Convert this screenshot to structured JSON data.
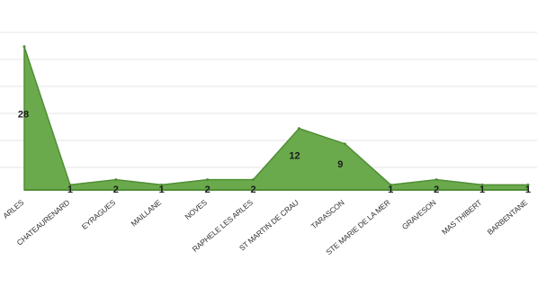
{
  "chart_data": {
    "type": "area",
    "categories": [
      "ARLES",
      "CHATEAURENARD",
      "EYRAGUES",
      "MAILLANE",
      "NOVES",
      "RAPHELE LES ARLES",
      "ST MARTIN DE CRAU",
      "TARASCON",
      "STE MARIE DE LA MER",
      "GRAVESON",
      "MAS THIBERT",
      "BARBENTANE"
    ],
    "values": [
      28,
      1,
      2,
      1,
      2,
      2,
      12,
      9,
      1,
      2,
      1,
      1
    ],
    "data_labels": [
      "28",
      "1",
      "2",
      "1",
      "2",
      "2",
      "12",
      "9",
      "1",
      "2",
      "1",
      "1"
    ],
    "peak_value": 35,
    "ylim": [
      0,
      35
    ],
    "grid": true,
    "colors": {
      "fill": "#6aaa4d",
      "stroke": "#4f8e35"
    }
  }
}
